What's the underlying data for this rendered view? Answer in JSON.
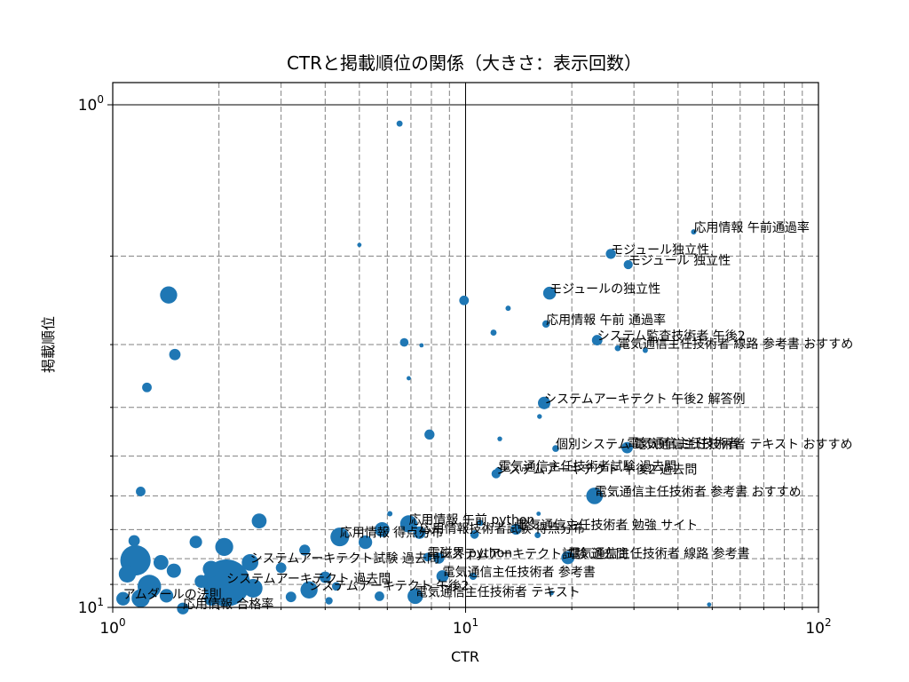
{
  "chart_data": {
    "type": "scatter",
    "title": "CTRと掲載順位の関係（大きさ：表示回数）",
    "xlabel": "CTR",
    "ylabel": "掲載順位",
    "x_scale": "log",
    "y_scale": "log",
    "y_inverted": true,
    "xlim": [
      1,
      100
    ],
    "ylim": [
      10,
      1
    ],
    "grid": true,
    "x_ticks": [
      {
        "value": 1,
        "base": "10",
        "exp": "0"
      },
      {
        "value": 10,
        "base": "10",
        "exp": "1"
      },
      {
        "value": 100,
        "base": "10",
        "exp": "2"
      }
    ],
    "y_ticks": [
      {
        "value": 1,
        "base": "10",
        "exp": "0"
      },
      {
        "value": 10,
        "base": "10",
        "exp": "1"
      }
    ],
    "marker_color": "#1f77b4",
    "points": [
      {
        "x": 44.3,
        "y": 1.79,
        "size": 30,
        "label": "応用情報 午前通過率"
      },
      {
        "x": 25.8,
        "y": 1.98,
        "size": 110,
        "label": "モジュール独立性"
      },
      {
        "x": 28.9,
        "y": 2.08,
        "size": 90,
        "label": "モジュール 独立性"
      },
      {
        "x": 17.3,
        "y": 2.37,
        "size": 180,
        "label": "モジュールの独立性"
      },
      {
        "x": 16.9,
        "y": 2.73,
        "size": 60,
        "label": "応用情報 午前 通過率"
      },
      {
        "x": 23.6,
        "y": 2.94,
        "size": 120,
        "label": "システム監査技術者 午後2"
      },
      {
        "x": 27.0,
        "y": 3.05,
        "size": 40,
        "label": "電気通信主任技術者 線路 参考書 おすすめ"
      },
      {
        "x": 32.3,
        "y": 3.08,
        "size": 30,
        "label": ""
      },
      {
        "x": 16.7,
        "y": 3.92,
        "size": 170,
        "label": "システムアーキテクト 午後2 解答例"
      },
      {
        "x": 18.0,
        "y": 4.83,
        "size": 50,
        "label": "個別システム 電気通信主任技術者 テキスト おすすめ"
      },
      {
        "x": 28.7,
        "y": 4.81,
        "size": 140,
        "label": "電気通信主任技術者"
      },
      {
        "x": 12.2,
        "y": 5.42,
        "size": 90,
        "label": "システムアーキテクト 午後2 過去問"
      },
      {
        "x": 12.4,
        "y": 5.35,
        "size": 60,
        "label": "電気通信主任技術者試験 過去問"
      },
      {
        "x": 23.2,
        "y": 6.0,
        "size": 300,
        "label": "電気通信主任技術者 参考書 おすすめ"
      },
      {
        "x": 6.9,
        "y": 6.82,
        "size": 320,
        "label": "応用情報 午前 python"
      },
      {
        "x": 13.9,
        "y": 6.99,
        "size": 130,
        "label": "電気通信主任技術者 勉強 サイト"
      },
      {
        "x": 4.4,
        "y": 7.24,
        "size": 380,
        "label": "応用情報 得点分布"
      },
      {
        "x": 7.4,
        "y": 7.1,
        "size": 170,
        "label": "応用情報技術者試験 得点分布"
      },
      {
        "x": 8.4,
        "y": 7.98,
        "size": 130,
        "label": "システムアーキテクト試験 過去問"
      },
      {
        "x": 7.8,
        "y": 7.94,
        "size": 80,
        "label": "電磁界 python"
      },
      {
        "x": 19.5,
        "y": 7.96,
        "size": 190,
        "label": "電気通信主任技術者 線路 参考書"
      },
      {
        "x": 2.45,
        "y": 8.14,
        "size": 300,
        "label": "システムアーキテクト試験 過去問"
      },
      {
        "x": 8.6,
        "y": 8.67,
        "size": 160,
        "label": "電気通信主任技術者 参考書"
      },
      {
        "x": 2.1,
        "y": 8.94,
        "size": 2400,
        "label": "システムアーキテクト 過去問"
      },
      {
        "x": 3.6,
        "y": 9.23,
        "size": 320,
        "label": "システムアーキテクト 午後2"
      },
      {
        "x": 7.2,
        "y": 9.5,
        "size": 260,
        "label": "電気通信主任技術者 テキスト"
      },
      {
        "x": 1.07,
        "y": 9.61,
        "size": 200,
        "label": "アムダールの法則"
      },
      {
        "x": 1.58,
        "y": 10.05,
        "size": 150,
        "label": "応用情報 合格率"
      },
      {
        "x": 6.5,
        "y": 1.09,
        "size": 40,
        "label": ""
      },
      {
        "x": 5.0,
        "y": 1.9,
        "size": 20,
        "label": ""
      },
      {
        "x": 1.44,
        "y": 2.39,
        "size": 320,
        "label": ""
      },
      {
        "x": 9.9,
        "y": 2.45,
        "size": 100,
        "label": ""
      },
      {
        "x": 13.2,
        "y": 2.54,
        "size": 30,
        "label": ""
      },
      {
        "x": 12.0,
        "y": 2.84,
        "size": 40,
        "label": ""
      },
      {
        "x": 6.7,
        "y": 2.97,
        "size": 80,
        "label": ""
      },
      {
        "x": 7.5,
        "y": 3.01,
        "size": 20,
        "label": ""
      },
      {
        "x": 1.5,
        "y": 3.14,
        "size": 140,
        "label": ""
      },
      {
        "x": 6.9,
        "y": 3.5,
        "size": 20,
        "label": ""
      },
      {
        "x": 1.25,
        "y": 3.65,
        "size": 100,
        "label": ""
      },
      {
        "x": 16.2,
        "y": 4.17,
        "size": 25,
        "label": ""
      },
      {
        "x": 7.9,
        "y": 4.53,
        "size": 110,
        "label": ""
      },
      {
        "x": 12.5,
        "y": 4.62,
        "size": 25,
        "label": ""
      },
      {
        "x": 1.2,
        "y": 5.88,
        "size": 100,
        "label": ""
      },
      {
        "x": 2.6,
        "y": 6.73,
        "size": 240,
        "label": ""
      },
      {
        "x": 6.1,
        "y": 6.51,
        "size": 30,
        "label": ""
      },
      {
        "x": 5.8,
        "y": 7.0,
        "size": 240,
        "label": ""
      },
      {
        "x": 1.15,
        "y": 7.37,
        "size": 140,
        "label": ""
      },
      {
        "x": 1.72,
        "y": 7.41,
        "size": 170,
        "label": ""
      },
      {
        "x": 2.07,
        "y": 7.58,
        "size": 350,
        "label": ""
      },
      {
        "x": 3.5,
        "y": 7.69,
        "size": 130,
        "label": ""
      },
      {
        "x": 5.2,
        "y": 7.42,
        "size": 200,
        "label": ""
      },
      {
        "x": 1.16,
        "y": 8.06,
        "size": 1000,
        "label": ""
      },
      {
        "x": 1.37,
        "y": 8.14,
        "size": 240,
        "label": ""
      },
      {
        "x": 1.49,
        "y": 8.45,
        "size": 220,
        "label": ""
      },
      {
        "x": 1.9,
        "y": 8.39,
        "size": 300,
        "label": ""
      },
      {
        "x": 3.0,
        "y": 8.34,
        "size": 120,
        "label": ""
      },
      {
        "x": 1.1,
        "y": 8.58,
        "size": 320,
        "label": ""
      },
      {
        "x": 1.78,
        "y": 8.88,
        "size": 180,
        "label": ""
      },
      {
        "x": 1.27,
        "y": 9.09,
        "size": 600,
        "label": ""
      },
      {
        "x": 2.5,
        "y": 9.16,
        "size": 380,
        "label": ""
      },
      {
        "x": 1.42,
        "y": 9.48,
        "size": 200,
        "label": ""
      },
      {
        "x": 1.2,
        "y": 9.59,
        "size": 360,
        "label": ""
      },
      {
        "x": 1.9,
        "y": 9.62,
        "size": 200,
        "label": ""
      },
      {
        "x": 3.2,
        "y": 9.53,
        "size": 120,
        "label": ""
      },
      {
        "x": 4.1,
        "y": 9.7,
        "size": 60,
        "label": ""
      },
      {
        "x": 5.7,
        "y": 9.5,
        "size": 100,
        "label": ""
      },
      {
        "x": 4.0,
        "y": 8.71,
        "size": 140,
        "label": ""
      },
      {
        "x": 4.3,
        "y": 9.08,
        "size": 80,
        "label": ""
      },
      {
        "x": 10.6,
        "y": 7.16,
        "size": 80,
        "label": ""
      },
      {
        "x": 11.0,
        "y": 6.79,
        "size": 40,
        "label": ""
      },
      {
        "x": 16.0,
        "y": 7.18,
        "size": 40,
        "label": ""
      },
      {
        "x": 16.1,
        "y": 6.51,
        "size": 20,
        "label": ""
      },
      {
        "x": 10.5,
        "y": 8.67,
        "size": 60,
        "label": ""
      },
      {
        "x": 17.5,
        "y": 9.36,
        "size": 25,
        "label": ""
      },
      {
        "x": 49.0,
        "y": 9.87,
        "size": 20,
        "label": ""
      }
    ]
  }
}
